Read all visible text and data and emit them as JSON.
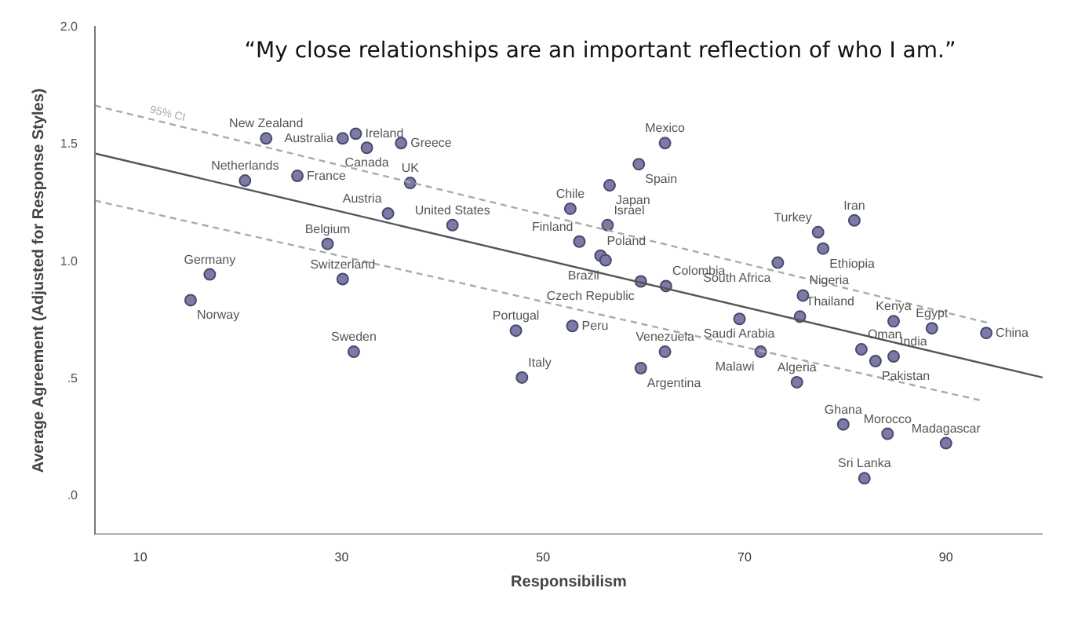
{
  "chart_data": {
    "type": "scatter",
    "title": "“My close relationships are an important reflection of who I am.”",
    "xlabel": "Responsibilism",
    "ylabel": "Average Agreement (Adjusted for Response Styles)",
    "xlim": [
      5.5,
      99.6
    ],
    "ylim": [
      -0.17,
      2.0
    ],
    "xticks": [
      10,
      30,
      50,
      70,
      90
    ],
    "yticks": [
      {
        "value": 0,
        "label": ".0"
      },
      {
        "value": 0.5,
        "label": ".5"
      },
      {
        "value": 1.0,
        "label": "1.0"
      },
      {
        "value": 1.5,
        "label": "1.5"
      },
      {
        "value": 2.0,
        "label": "2.0"
      }
    ],
    "grid": false,
    "marker": "circle",
    "color": "#7b7ba6",
    "series": [
      {
        "name": "New Zealand",
        "x": [
          22.5
        ],
        "values": [
          1.52
        ]
      },
      {
        "name": "Australia",
        "x": [
          30.1
        ],
        "values": [
          1.52
        ]
      },
      {
        "name": "Ireland",
        "x": [
          31.4
        ],
        "values": [
          1.54
        ]
      },
      {
        "name": "Canada",
        "x": [
          32.5
        ],
        "values": [
          1.48
        ]
      },
      {
        "name": "Greece",
        "x": [
          35.9
        ],
        "values": [
          1.5
        ]
      },
      {
        "name": "UK",
        "x": [
          36.8
        ],
        "values": [
          1.33
        ]
      },
      {
        "name": "France",
        "x": [
          25.6
        ],
        "values": [
          1.36
        ]
      },
      {
        "name": "Netherlands",
        "x": [
          20.4
        ],
        "values": [
          1.34
        ]
      },
      {
        "name": "Austria",
        "x": [
          34.6
        ],
        "values": [
          1.2
        ]
      },
      {
        "name": "United States",
        "x": [
          41.0
        ],
        "values": [
          1.15
        ]
      },
      {
        "name": "Belgium",
        "x": [
          28.6
        ],
        "values": [
          1.07
        ]
      },
      {
        "name": "Switzerland",
        "x": [
          30.1
        ],
        "values": [
          0.92
        ]
      },
      {
        "name": "Germany",
        "x": [
          16.9
        ],
        "values": [
          0.94
        ]
      },
      {
        "name": "Norway",
        "x": [
          15.0
        ],
        "values": [
          0.83
        ]
      },
      {
        "name": "Sweden",
        "x": [
          31.2
        ],
        "values": [
          0.61
        ]
      },
      {
        "name": "Portugal",
        "x": [
          47.3
        ],
        "values": [
          0.7
        ]
      },
      {
        "name": "Italy",
        "x": [
          47.9
        ],
        "values": [
          0.5
        ]
      },
      {
        "name": "Peru",
        "x": [
          52.9
        ],
        "values": [
          0.72
        ]
      },
      {
        "name": "Chile",
        "x": [
          52.7
        ],
        "values": [
          1.22
        ]
      },
      {
        "name": "Japan",
        "x": [
          56.6
        ],
        "values": [
          1.32
        ]
      },
      {
        "name": "Spain",
        "x": [
          59.5
        ],
        "values": [
          1.41
        ]
      },
      {
        "name": "Mexico",
        "x": [
          62.1
        ],
        "values": [
          1.5
        ]
      },
      {
        "name": "Israel",
        "x": [
          56.4
        ],
        "values": [
          1.15
        ]
      },
      {
        "name": "Finland",
        "x": [
          53.6
        ],
        "values": [
          1.08
        ]
      },
      {
        "name": "Poland",
        "x": [
          55.7
        ],
        "values": [
          1.02
        ]
      },
      {
        "name": "Brazil",
        "x": [
          56.2
        ],
        "values": [
          1.0
        ]
      },
      {
        "name": "Czech Republic",
        "x": [
          59.7
        ],
        "values": [
          0.91
        ]
      },
      {
        "name": "Colombia",
        "x": [
          62.2
        ],
        "values": [
          0.89
        ]
      },
      {
        "name": "South Africa",
        "x": [
          73.3
        ],
        "values": [
          0.99
        ]
      },
      {
        "name": "Nigeria",
        "x": [
          75.8
        ],
        "values": [
          0.85
        ]
      },
      {
        "name": "Saudi Arabia",
        "x": [
          69.5
        ],
        "values": [
          0.75
        ]
      },
      {
        "name": "Thailand",
        "x": [
          75.5
        ],
        "values": [
          0.76
        ]
      },
      {
        "name": "Oman",
        "x": [
          81.6
        ],
        "values": [
          0.62
        ]
      },
      {
        "name": "Pakistan",
        "x": [
          83.0
        ],
        "values": [
          0.57
        ]
      },
      {
        "name": "India",
        "x": [
          84.8
        ],
        "values": [
          0.59
        ]
      },
      {
        "name": "Turkey",
        "x": [
          77.3
        ],
        "values": [
          1.12
        ]
      },
      {
        "name": "Ethiopia",
        "x": [
          77.8
        ],
        "values": [
          1.05
        ]
      },
      {
        "name": "Iran",
        "x": [
          80.9
        ],
        "values": [
          1.17
        ]
      },
      {
        "name": "Kenya",
        "x": [
          84.8
        ],
        "values": [
          0.74
        ]
      },
      {
        "name": "Egypt",
        "x": [
          88.6
        ],
        "values": [
          0.71
        ]
      },
      {
        "name": "China",
        "x": [
          94.0
        ],
        "values": [
          0.69
        ]
      },
      {
        "name": "Venezuela",
        "x": [
          62.1
        ],
        "values": [
          0.61
        ]
      },
      {
        "name": "Argentina",
        "x": [
          59.7
        ],
        "values": [
          0.54
        ]
      },
      {
        "name": "Malawi",
        "x": [
          71.6
        ],
        "values": [
          0.61
        ]
      },
      {
        "name": "Algeria",
        "x": [
          75.2
        ],
        "values": [
          0.48
        ]
      },
      {
        "name": "Ghana",
        "x": [
          79.8
        ],
        "values": [
          0.3
        ]
      },
      {
        "name": "Morocco",
        "x": [
          84.2
        ],
        "values": [
          0.26
        ]
      },
      {
        "name": "Madagascar",
        "x": [
          90.0
        ],
        "values": [
          0.22
        ]
      },
      {
        "name": "Sri Lanka",
        "x": [
          81.9
        ],
        "values": [
          0.07
        ]
      },
      {
        "type": "line",
        "marker": "none",
        "color": "#555555",
        "line_style": "solid",
        "x": [
          5.5,
          99.6
        ],
        "values": [
          1.456,
          0.5
        ]
      },
      {
        "type": "line",
        "marker": "none",
        "name": "95% CI",
        "color": "#aaaaaa",
        "line_style": "dashed",
        "x": [
          5.5,
          94.5
        ],
        "values": [
          1.66,
          0.73
        ]
      },
      {
        "type": "line",
        "marker": "none",
        "color": "#aaaaaa",
        "line_style": "dashed",
        "x": [
          5.5,
          93.7
        ],
        "values": [
          1.255,
          0.4
        ]
      }
    ]
  }
}
